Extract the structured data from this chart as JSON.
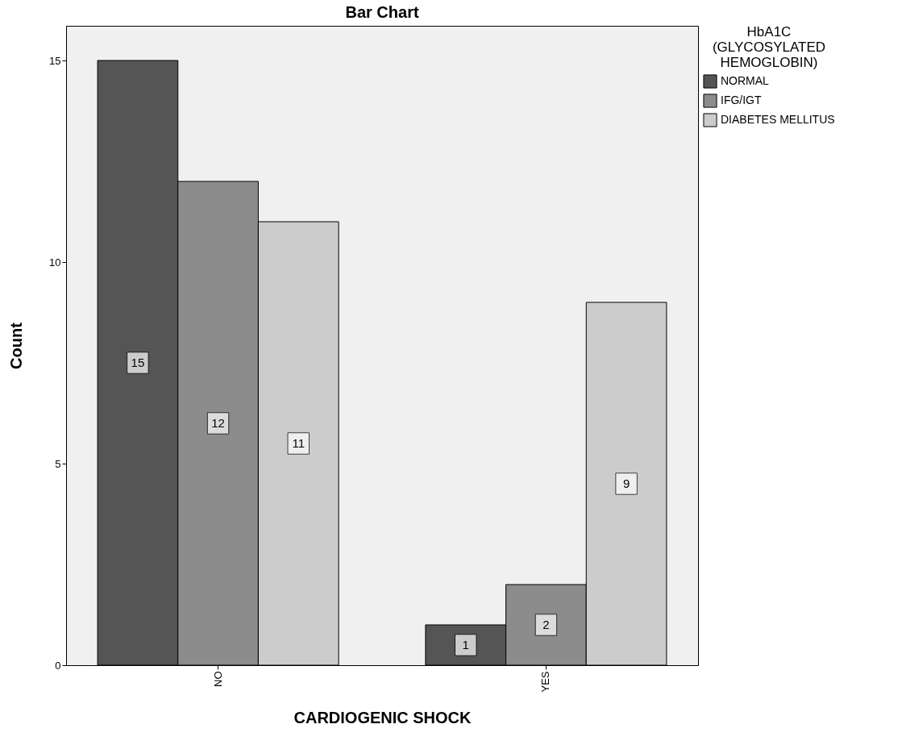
{
  "chart_data": {
    "type": "bar",
    "title": "Bar Chart",
    "xlabel": "CARDIOGENIC SHOCK",
    "ylabel": "Count",
    "legend_title": "HbA1C\n(GLYCOSYLATED\nHEMOGLOBIN)",
    "categories": [
      "NO",
      "YES"
    ],
    "series": [
      {
        "name": "NORMAL",
        "color": "#555555",
        "values": [
          15,
          1
        ]
      },
      {
        "name": "IFG/IGT",
        "color": "#8c8c8c",
        "values": [
          12,
          2
        ]
      },
      {
        "name": "DIABETES MELLITUS",
        "color": "#cccccc",
        "values": [
          11,
          9
        ]
      }
    ],
    "ylim": [
      0,
      15.86
    ],
    "yticks": [
      0,
      5,
      10,
      15
    ],
    "grid": false,
    "legend": "top right",
    "data_labels": true
  }
}
